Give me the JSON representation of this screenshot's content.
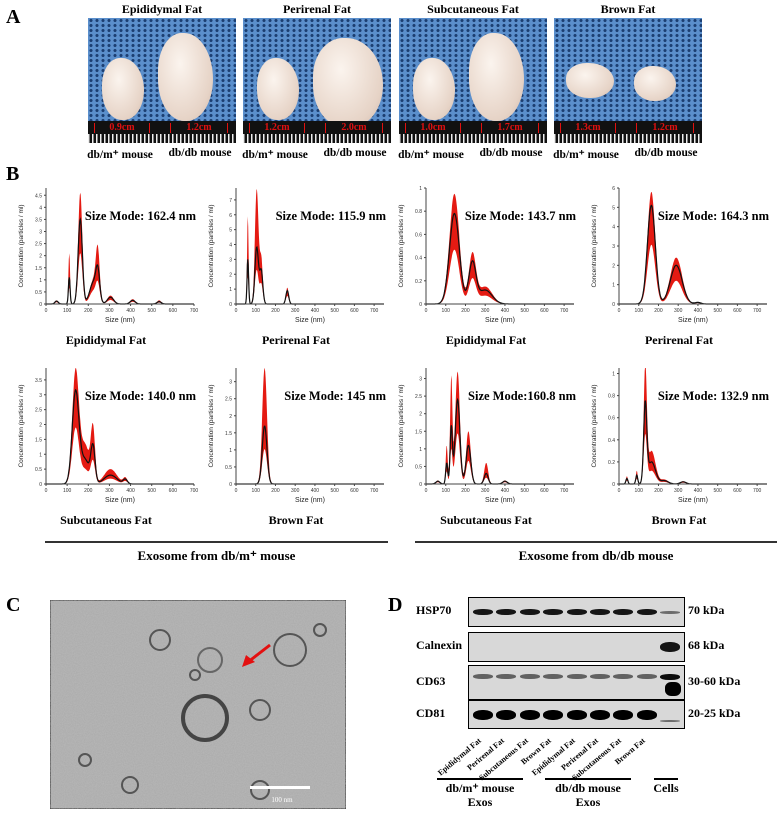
{
  "panels": {
    "a": "A",
    "b": "B",
    "c": "C",
    "d": "D"
  },
  "panel_a": {
    "tissues": [
      {
        "title": "Epididymal Fat",
        "left_len": "0.9cm",
        "right_len": "1.2cm"
      },
      {
        "title": "Perirenal Fat",
        "left_len": "1.2cm",
        "right_len": "2.0cm"
      },
      {
        "title": "Subcutaneous Fat",
        "left_len": "1.0cm",
        "right_len": "1.7cm"
      },
      {
        "title": "Brown Fat",
        "left_len": "1.3cm",
        "right_len": "1.2cm"
      }
    ],
    "left_label": "db/m⁺ mouse",
    "right_label": "db/db mouse"
  },
  "panel_b": {
    "group_left": "Exosome from db/m⁺ mouse",
    "group_right": "Exosome from db/db mouse",
    "titles": [
      "Epididymal Fat",
      "Perirenal Fat",
      "Epididymal Fat",
      "Perirenal Fat",
      "Subcutaneous Fat",
      "Brown Fat",
      "Subcutaneous Fat",
      "Brown Fat"
    ]
  },
  "chart_data": [
    {
      "type": "line",
      "title": "Size Mode: 162.4 nm",
      "xlabel": "Size (nm)",
      "ylabel": "Concentration (particles / ml)",
      "xlim": [
        0,
        700
      ],
      "xticks": [
        0,
        100,
        200,
        300,
        400,
        500,
        600,
        700
      ],
      "ylim": [
        0,
        4.8
      ],
      "yticks": [
        0,
        0.5,
        1.0,
        1.5,
        2.0,
        2.5,
        3.0,
        3.5,
        4.0,
        4.5
      ],
      "peaks": [
        [
          50,
          0.12,
          0.15,
          8
        ],
        [
          110,
          1.1,
          2.1,
          4
        ],
        [
          162,
          3.5,
          4.6,
          10
        ],
        [
          225,
          0.9,
          1.0,
          18
        ],
        [
          245,
          1.1,
          1.9,
          9
        ],
        [
          305,
          0.28,
          0.35,
          15
        ],
        [
          410,
          0.15,
          0.2,
          12
        ],
        [
          535,
          0.1,
          0.15,
          10
        ]
      ]
    },
    {
      "type": "line",
      "title": "Size Mode: 115.9 nm",
      "xlabel": "Size (nm)",
      "ylabel": "Concentration (particles / ml)",
      "xlim": [
        0,
        750
      ],
      "xticks": [
        0,
        100,
        200,
        300,
        400,
        500,
        600,
        700
      ],
      "ylim": [
        0,
        7.8
      ],
      "yticks": [
        0,
        1.0,
        2.0,
        3.0,
        4.0,
        5.0,
        6.0,
        7.0
      ],
      "peaks": [
        [
          60,
          3.0,
          5.9,
          4
        ],
        [
          105,
          3.8,
          7.7,
          9
        ],
        [
          128,
          2.2,
          3.0,
          8
        ],
        [
          260,
          0.9,
          1.1,
          7
        ]
      ]
    },
    {
      "type": "line",
      "title": "Size Mode: 143.7 nm",
      "xlabel": "Size (nm)",
      "ylabel": "Concentration (particles / ml)",
      "xlim": [
        0,
        750
      ],
      "xticks": [
        0,
        100,
        200,
        300,
        400,
        500,
        600,
        700
      ],
      "ylim": [
        0,
        1.0
      ],
      "yticks": [
        0,
        0.2,
        0.4,
        0.6,
        0.8,
        1.0
      ],
      "peaks": [
        [
          144,
          0.78,
          0.95,
          25
        ],
        [
          235,
          0.35,
          0.42,
          18
        ],
        [
          300,
          0.12,
          0.15,
          35
        ]
      ]
    },
    {
      "type": "line",
      "title": "Size Mode: 164.3 nm",
      "xlabel": "Size (nm)",
      "ylabel": "Concentration (particles / ml)",
      "xlim": [
        0,
        750
      ],
      "xticks": [
        0,
        100,
        200,
        300,
        400,
        500,
        600,
        700
      ],
      "ylim": [
        0,
        6.0
      ],
      "yticks": [
        0,
        1.0,
        2.0,
        3.0,
        4.0,
        5.0,
        6.0
      ],
      "peaks": [
        [
          164,
          5.1,
          5.8,
          20
        ],
        [
          290,
          2.0,
          2.4,
          30
        ],
        [
          400,
          0.08,
          0.1,
          15
        ]
      ]
    },
    {
      "type": "line",
      "title": "Size Mode: 140.0 nm",
      "xlabel": "Size (nm)",
      "ylabel": "Concentration (particles / ml)",
      "xlim": [
        0,
        700
      ],
      "xticks": [
        0,
        100,
        200,
        300,
        400,
        500,
        600,
        700
      ],
      "ylim": [
        0,
        3.9
      ],
      "yticks": [
        0,
        0.5,
        1.0,
        1.5,
        2.0,
        2.5,
        3.0,
        3.5
      ],
      "peaks": [
        [
          140,
          3.1,
          3.8,
          16
        ],
        [
          185,
          0.8,
          1.3,
          20
        ],
        [
          222,
          1.2,
          1.8,
          10
        ],
        [
          305,
          0.3,
          0.5,
          30
        ],
        [
          375,
          0.15,
          0.2,
          10
        ]
      ]
    },
    {
      "type": "line",
      "title": "Size Mode: 145 nm",
      "xlabel": "Size (nm)",
      "ylabel": "Concentration (particles / ml)",
      "xlim": [
        0,
        750
      ],
      "xticks": [
        0,
        100,
        200,
        300,
        400,
        500,
        600,
        700
      ],
      "ylim": [
        0,
        3.4
      ],
      "yticks": [
        0,
        0.5,
        1.0,
        1.5,
        2.0,
        2.5,
        3.0
      ],
      "peaks": [
        [
          145,
          1.7,
          3.4,
          12
        ]
      ]
    },
    {
      "type": "line",
      "title": "Size Mode:160.8 nm",
      "xlabel": "Size (nm)",
      "ylabel": "Concentration (particles / ml)",
      "xlim": [
        0,
        750
      ],
      "xticks": [
        0,
        100,
        200,
        300,
        400,
        500,
        600,
        700
      ],
      "ylim": [
        0,
        3.3
      ],
      "yticks": [
        0,
        0.5,
        1.0,
        1.5,
        2.0,
        2.5,
        3.0
      ],
      "peaks": [
        [
          60,
          0.08,
          0.1,
          10
        ],
        [
          105,
          0.6,
          1.1,
          5
        ],
        [
          128,
          1.6,
          3.0,
          6
        ],
        [
          160,
          2.4,
          3.2,
          12
        ],
        [
          215,
          1.1,
          1.5,
          12
        ],
        [
          305,
          0.3,
          0.6,
          10
        ],
        [
          400,
          0.08,
          0.1,
          12
        ]
      ]
    },
    {
      "type": "line",
      "title": "Size Mode: 132.9 nm",
      "xlabel": "Size (nm)",
      "ylabel": "Concentration (particles / ml)",
      "xlim": [
        0,
        750
      ],
      "xticks": [
        0,
        100,
        200,
        300,
        400,
        500,
        600,
        700
      ],
      "ylim": [
        0,
        1.05
      ],
      "yticks": [
        0,
        0.2,
        0.4,
        0.6,
        0.8,
        1.0
      ],
      "peaks": [
        [
          40,
          0.05,
          0.07,
          5
        ],
        [
          90,
          0.08,
          0.12,
          5
        ],
        [
          133,
          0.7,
          1.03,
          8
        ],
        [
          165,
          0.2,
          0.3,
          20
        ],
        [
          230,
          0.03,
          0.04,
          20
        ],
        [
          325,
          0.02,
          0.025,
          15
        ]
      ]
    }
  ],
  "panel_c": {
    "scale_bar": "100 nm"
  },
  "panel_d": {
    "proteins": [
      {
        "name": "HSP70",
        "kda": "70 kDa"
      },
      {
        "name": "Calnexin",
        "kda": "68 kDa"
      },
      {
        "name": "CD63",
        "kda": "30-60 kDa"
      },
      {
        "name": "CD81",
        "kda": "20-25 kDa"
      }
    ],
    "lanes": [
      "Epididymal Fat",
      "Perirenal Fat",
      "Subcutaneous Fat",
      "Brown Fat",
      "Epididymal Fat",
      "Perirenal Fat",
      "Subcutaneous Fat",
      "Brown Fat"
    ],
    "group1": "db/m⁺ mouse",
    "group1b": "Exos",
    "group2": "db/db mouse",
    "group2b": "Exos",
    "group3": "Cells"
  }
}
